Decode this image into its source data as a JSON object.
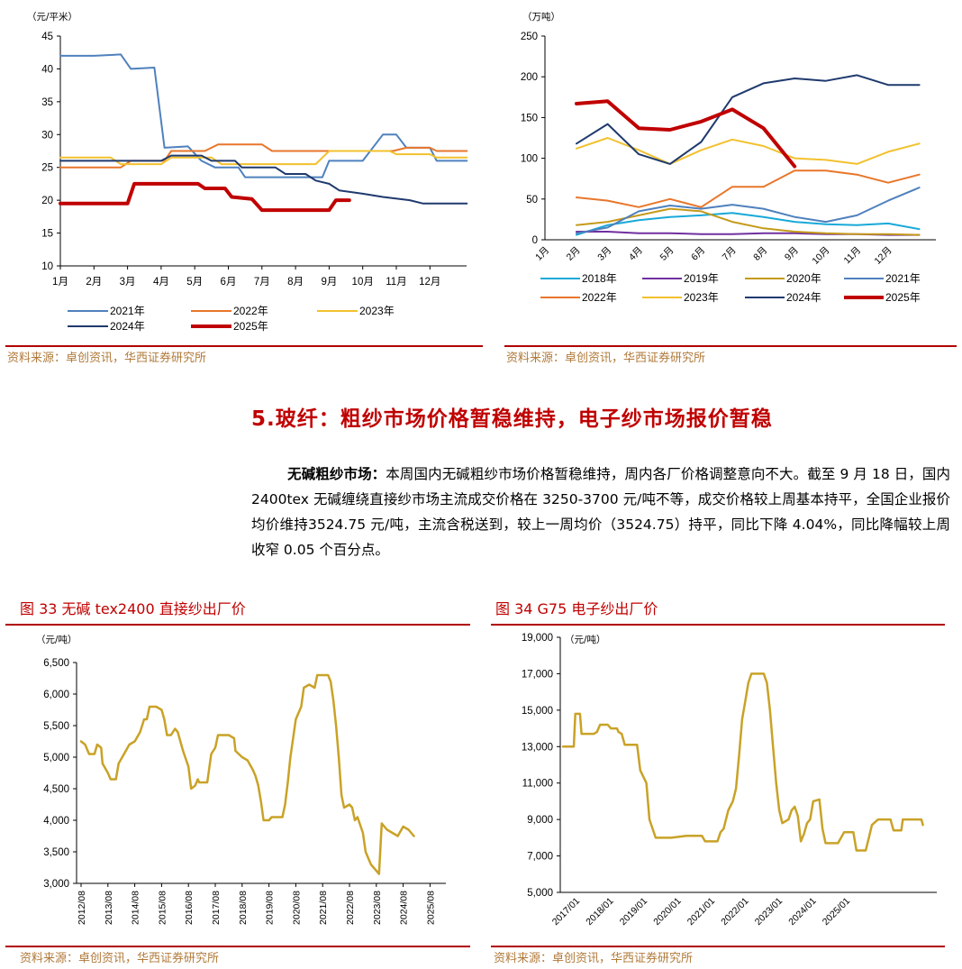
{
  "chart_top_left": {
    "type": "line",
    "unit_label": "（元/平米）",
    "yticks": [
      "45",
      "40",
      "35",
      "30",
      "25",
      "20",
      "15",
      "10"
    ],
    "ylim": [
      10,
      45
    ],
    "categories": [
      "1月",
      "2月",
      "3月",
      "4月",
      "5月",
      "6月",
      "7月",
      "8月",
      "9月",
      "10月",
      "11月",
      "12月"
    ],
    "series": [
      {
        "name": "2021年",
        "color": "#4f81bd",
        "width": 2,
        "points": [
          [
            1,
            42
          ],
          [
            2,
            42
          ],
          [
            2.8,
            42.2
          ],
          [
            3.1,
            40
          ],
          [
            3.8,
            40.2
          ],
          [
            4.1,
            28
          ],
          [
            4.8,
            28.2
          ],
          [
            5.2,
            26
          ],
          [
            5.6,
            25
          ],
          [
            6.3,
            25
          ],
          [
            6.5,
            23.5
          ],
          [
            8.2,
            23.5
          ],
          [
            8.8,
            23.5
          ],
          [
            9,
            26
          ],
          [
            10,
            26
          ],
          [
            10.6,
            30
          ],
          [
            11,
            30
          ],
          [
            11.3,
            28
          ],
          [
            12,
            28
          ],
          [
            12.2,
            26
          ],
          [
            13.1,
            26
          ]
        ]
      },
      {
        "name": "2022年",
        "color": "#e8762b",
        "width": 2,
        "points": [
          [
            1,
            25
          ],
          [
            2.8,
            25
          ],
          [
            3.1,
            26
          ],
          [
            4.1,
            26
          ],
          [
            4.3,
            27.5
          ],
          [
            5.3,
            27.5
          ],
          [
            5.7,
            28.5
          ],
          [
            7,
            28.5
          ],
          [
            7.3,
            27.5
          ],
          [
            10.9,
            27.5
          ],
          [
            11.3,
            28
          ],
          [
            12,
            28
          ],
          [
            12.2,
            27.5
          ],
          [
            13.1,
            27.5
          ]
        ]
      },
      {
        "name": "2023年",
        "color": "#f2c12e",
        "width": 2,
        "points": [
          [
            1,
            26.5
          ],
          [
            2.5,
            26.5
          ],
          [
            2.8,
            25.5
          ],
          [
            4,
            25.5
          ],
          [
            4.3,
            26.5
          ],
          [
            5.5,
            26.5
          ],
          [
            5.8,
            25.5
          ],
          [
            8.6,
            25.5
          ],
          [
            9,
            27.5
          ],
          [
            10.8,
            27.5
          ],
          [
            11,
            27
          ],
          [
            12,
            27
          ],
          [
            12.2,
            26.5
          ],
          [
            13.1,
            26.5
          ]
        ]
      },
      {
        "name": "2024年",
        "color": "#1f3a6e",
        "width": 2,
        "points": [
          [
            1,
            26
          ],
          [
            4,
            26
          ],
          [
            4.3,
            26.8
          ],
          [
            5.2,
            26.8
          ],
          [
            5.5,
            26
          ],
          [
            6.2,
            26
          ],
          [
            6.4,
            25
          ],
          [
            7.4,
            25
          ],
          [
            7.7,
            24
          ],
          [
            8.3,
            24
          ],
          [
            8.6,
            23
          ],
          [
            9,
            22.5
          ],
          [
            9.3,
            21.5
          ],
          [
            10,
            21
          ],
          [
            10.6,
            20.5
          ],
          [
            11.4,
            20
          ],
          [
            11.8,
            19.5
          ],
          [
            13.1,
            19.5
          ]
        ]
      },
      {
        "name": "2025年",
        "color": "#c00000",
        "width": 4,
        "points": [
          [
            1,
            19.5
          ],
          [
            3,
            19.5
          ],
          [
            3.2,
            22.5
          ],
          [
            5.1,
            22.5
          ],
          [
            5.3,
            21.8
          ],
          [
            5.9,
            21.8
          ],
          [
            6.1,
            20.5
          ],
          [
            6.7,
            20.2
          ],
          [
            7,
            18.5
          ],
          [
            9,
            18.5
          ],
          [
            9.2,
            20
          ],
          [
            9.6,
            20
          ]
        ]
      }
    ],
    "legend": [
      "2021年",
      "2022年",
      "2023年",
      "2024年",
      "2025年"
    ]
  },
  "chart_top_right": {
    "type": "line",
    "unit_label": "（万吨）",
    "yticks": [
      "250",
      "200",
      "150",
      "100",
      "50",
      "0"
    ],
    "ylim": [
      0,
      250
    ],
    "categories": [
      "1月",
      "2月",
      "3月",
      "4月",
      "5月",
      "6月",
      "7月",
      "8月",
      "9月",
      "10月",
      "11月",
      "12月"
    ],
    "series": [
      {
        "name": "2018年",
        "color": "#18a9d8",
        "width": 2,
        "values": [
          6,
          18,
          24,
          28,
          30,
          33,
          28,
          22,
          19,
          18,
          20,
          13
        ]
      },
      {
        "name": "2019年",
        "color": "#7030a0",
        "width": 2,
        "values": [
          10,
          10,
          8,
          8,
          7,
          7,
          8,
          8,
          7,
          7,
          6,
          6
        ]
      },
      {
        "name": "2020年",
        "color": "#c59a1a",
        "width": 2,
        "values": [
          18,
          22,
          30,
          38,
          35,
          22,
          14,
          10,
          8,
          7,
          7,
          6
        ]
      },
      {
        "name": "2021年",
        "color": "#4f81bd",
        "width": 2,
        "values": [
          8,
          15,
          35,
          42,
          38,
          43,
          38,
          28,
          22,
          30,
          48,
          64
        ]
      },
      {
        "name": "2022年",
        "color": "#e8762b",
        "width": 2,
        "values": [
          52,
          48,
          40,
          50,
          40,
          65,
          65,
          85,
          85,
          80,
          70,
          80
        ]
      },
      {
        "name": "2023年",
        "color": "#f2c12e",
        "width": 2,
        "values": [
          112,
          125,
          110,
          93,
          110,
          123,
          115,
          100,
          98,
          93,
          108,
          118
        ]
      },
      {
        "name": "2024年",
        "color": "#1f3a6e",
        "width": 2,
        "values": [
          118,
          142,
          105,
          93,
          120,
          175,
          192,
          198,
          195,
          202,
          190,
          190
        ]
      },
      {
        "name": "2025年",
        "color": "#c00000",
        "width": 4,
        "values": [
          167,
          170,
          137,
          135,
          145,
          160,
          137,
          90
        ]
      }
    ],
    "legend": [
      "2018年",
      "2019年",
      "2020年",
      "2021年",
      "2022年",
      "2023年",
      "2024年",
      "2025年"
    ]
  },
  "source_text": "资料来源：卓创资讯，华西证券研究所",
  "section_title": "5.玻纤：粗纱市场价格暂稳维持，电子纱市场报价暂稳",
  "paragraph": {
    "lead": "无碱粗纱市场：",
    "body": "本周国内无碱粗纱市场价格暂稳维持，周内各厂价格调整意向不大。截至 9 月 18 日，国内 2400tex 无碱缠绕直接纱市场主流成交价格在 3250-3700 元/吨不等，成交价格较上周基本持平，全国企业报价均价维持3524.75 元/吨，主流含税送到，较上一周均价（3524.75）持平，同比下降 4.04%，同比降幅较上周收窄 0.05 个百分点。"
  },
  "fig33": {
    "title": "图 33 无碱 tex2400 直接纱出厂价",
    "unit_label": "（元/吨）",
    "yticks": [
      "6,500",
      "6,000",
      "5,500",
      "5,000",
      "4,500",
      "4,000",
      "3,500",
      "3,000"
    ],
    "ylim": [
      3000,
      6500
    ],
    "xticks": [
      "2012/08",
      "2013/08",
      "2014/08",
      "2015/08",
      "2016/08",
      "2017/08",
      "2018/08",
      "2019/08",
      "2020/08",
      "2021/08",
      "2022/08",
      "2023/08",
      "2024/08",
      "2025/08"
    ],
    "color": "#c9a227",
    "points": [
      [
        0,
        5250
      ],
      [
        0.15,
        5200
      ],
      [
        0.3,
        5050
      ],
      [
        0.5,
        5050
      ],
      [
        0.6,
        5200
      ],
      [
        0.75,
        5150
      ],
      [
        0.8,
        4900
      ],
      [
        1,
        4750
      ],
      [
        1.1,
        4650
      ],
      [
        1.3,
        4650
      ],
      [
        1.4,
        4900
      ],
      [
        1.6,
        5050
      ],
      [
        1.8,
        5200
      ],
      [
        2,
        5250
      ],
      [
        2.2,
        5400
      ],
      [
        2.35,
        5600
      ],
      [
        2.45,
        5600
      ],
      [
        2.55,
        5800
      ],
      [
        2.8,
        5800
      ],
      [
        3,
        5750
      ],
      [
        3.1,
        5600
      ],
      [
        3.2,
        5350
      ],
      [
        3.35,
        5350
      ],
      [
        3.5,
        5450
      ],
      [
        3.6,
        5400
      ],
      [
        3.8,
        5100
      ],
      [
        4,
        4850
      ],
      [
        4.1,
        4500
      ],
      [
        4.25,
        4550
      ],
      [
        4.35,
        4650
      ],
      [
        4.4,
        4600
      ],
      [
        4.7,
        4600
      ],
      [
        4.85,
        5050
      ],
      [
        5,
        5150
      ],
      [
        5.1,
        5350
      ],
      [
        5.5,
        5350
      ],
      [
        5.7,
        5300
      ],
      [
        5.75,
        5100
      ],
      [
        6,
        5000
      ],
      [
        6.2,
        4950
      ],
      [
        6.4,
        4800
      ],
      [
        6.5,
        4700
      ],
      [
        6.6,
        4550
      ],
      [
        6.7,
        4300
      ],
      [
        6.8,
        4000
      ],
      [
        7,
        4000
      ],
      [
        7.1,
        4050
      ],
      [
        7.5,
        4050
      ],
      [
        7.6,
        4250
      ],
      [
        7.7,
        4600
      ],
      [
        7.8,
        5000
      ],
      [
        7.9,
        5300
      ],
      [
        8,
        5600
      ],
      [
        8.2,
        5800
      ],
      [
        8.3,
        6100
      ],
      [
        8.5,
        6150
      ],
      [
        8.7,
        6100
      ],
      [
        8.8,
        6300
      ],
      [
        9,
        6300
      ],
      [
        9.2,
        6300
      ],
      [
        9.3,
        6200
      ],
      [
        9.4,
        5900
      ],
      [
        9.5,
        5500
      ],
      [
        9.6,
        5000
      ],
      [
        9.7,
        4400
      ],
      [
        9.8,
        4200
      ],
      [
        10,
        4250
      ],
      [
        10.1,
        4200
      ],
      [
        10.2,
        4000
      ],
      [
        10.3,
        4050
      ],
      [
        10.5,
        3800
      ],
      [
        10.6,
        3500
      ],
      [
        10.8,
        3300
      ],
      [
        11,
        3200
      ],
      [
        11.1,
        3150
      ],
      [
        11.2,
        3950
      ],
      [
        11.4,
        3850
      ],
      [
        11.6,
        3800
      ],
      [
        11.8,
        3750
      ],
      [
        12,
        3900
      ],
      [
        12.2,
        3850
      ],
      [
        12.4,
        3750
      ]
    ]
  },
  "fig34": {
    "title": "图 34 G75 电子纱出厂价",
    "unit_label": "（元/吨）",
    "yticks": [
      "19,000",
      "17,000",
      "15,000",
      "13,000",
      "11,000",
      "9,000",
      "7,000",
      "5,000"
    ],
    "ylim": [
      5000,
      19000
    ],
    "xticks": [
      "2017/01",
      "2018/01",
      "2019/01",
      "2020/01",
      "2021/01",
      "2022/01",
      "2023/01",
      "2024/01",
      "2025/01"
    ],
    "color": "#c9a227",
    "points": [
      [
        0,
        13000
      ],
      [
        0.35,
        13000
      ],
      [
        0.4,
        14800
      ],
      [
        0.55,
        14800
      ],
      [
        0.6,
        13700
      ],
      [
        1,
        13700
      ],
      [
        1.1,
        13800
      ],
      [
        1.2,
        14200
      ],
      [
        1.45,
        14200
      ],
      [
        1.55,
        14000
      ],
      [
        1.75,
        14000
      ],
      [
        1.8,
        13800
      ],
      [
        1.9,
        13700
      ],
      [
        2,
        13100
      ],
      [
        2.4,
        13100
      ],
      [
        2.5,
        11700
      ],
      [
        2.7,
        11000
      ],
      [
        2.8,
        9000
      ],
      [
        3,
        8000
      ],
      [
        3.5,
        8000
      ],
      [
        4,
        8100
      ],
      [
        4.5,
        8100
      ],
      [
        4.6,
        7800
      ],
      [
        5,
        7800
      ],
      [
        5.1,
        8300
      ],
      [
        5.2,
        8500
      ],
      [
        5.35,
        9500
      ],
      [
        5.5,
        10000
      ],
      [
        5.6,
        10700
      ],
      [
        5.7,
        12500
      ],
      [
        5.8,
        14500
      ],
      [
        5.9,
        15500
      ],
      [
        6,
        16500
      ],
      [
        6.1,
        17000
      ],
      [
        6.5,
        17000
      ],
      [
        6.6,
        16500
      ],
      [
        6.7,
        15000
      ],
      [
        6.8,
        13000
      ],
      [
        6.9,
        11000
      ],
      [
        7,
        9500
      ],
      [
        7.1,
        8800
      ],
      [
        7.3,
        9000
      ],
      [
        7.4,
        9500
      ],
      [
        7.5,
        9700
      ],
      [
        7.6,
        9200
      ],
      [
        7.7,
        7800
      ],
      [
        7.8,
        8200
      ],
      [
        7.9,
        8800
      ],
      [
        8,
        9000
      ],
      [
        8.1,
        10000
      ],
      [
        8.3,
        10100
      ],
      [
        8.4,
        8500
      ],
      [
        8.5,
        7700
      ],
      [
        8.9,
        7700
      ],
      [
        9,
        8000
      ],
      [
        9.1,
        8300
      ],
      [
        9.4,
        8300
      ],
      [
        9.5,
        7300
      ],
      [
        9.8,
        7300
      ],
      [
        9.9,
        8000
      ],
      [
        10,
        8700
      ],
      [
        10.2,
        9000
      ],
      [
        10.6,
        9000
      ],
      [
        10.7,
        8400
      ],
      [
        10.95,
        8400
      ],
      [
        11,
        9000
      ],
      [
        11.6,
        9000
      ],
      [
        11.65,
        8700
      ]
    ]
  }
}
